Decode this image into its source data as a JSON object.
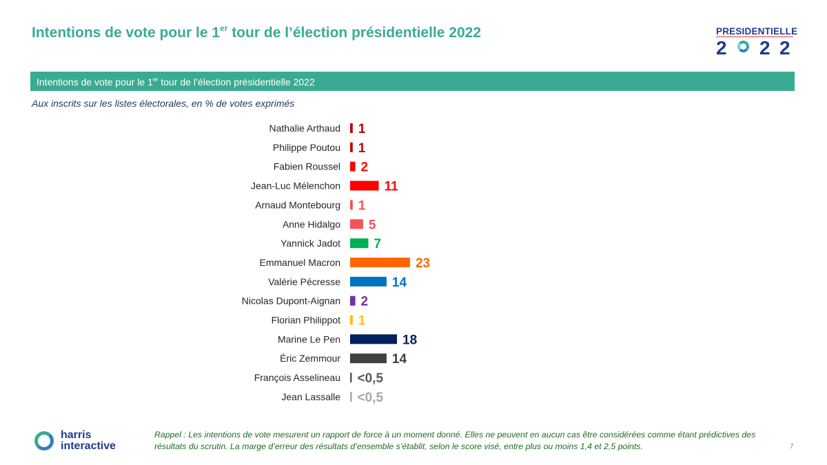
{
  "header": {
    "title_pre": "Intentions de vote pour le 1",
    "title_sup": "er",
    "title_post": " tour de l’élection présidentielle 2022"
  },
  "logo": {
    "word": "PRESIDENTIELLE",
    "digits": [
      "2",
      "2",
      "2"
    ]
  },
  "banner": {
    "text_pre": "Intentions  de vote pour le 1",
    "text_sup": "er",
    "text_post": " tour de l’élection présidentielle 2022"
  },
  "subtitle": "Aux inscrits sur les listes électorales, en % de votes exprimés",
  "chart_data": {
    "type": "bar",
    "orientation": "horizontal",
    "categories": [
      "Nathalie Arthaud",
      "Philippe Poutou",
      "Fabien Roussel",
      "Jean-Luc Mélenchon",
      "Arnaud Montebourg",
      "Anne Hidalgo",
      "Yannick Jadot",
      "Emmanuel Macron",
      "Valérie Pécresse",
      "Nicolas Dupont-Aignan",
      "Florian Philippot",
      "Marine Le Pen",
      "Éric Zemmour",
      "François Asselineau",
      "Jean Lassalle"
    ],
    "values": [
      1,
      1,
      2,
      11,
      1,
      5,
      7,
      23,
      14,
      2,
      1,
      18,
      14,
      0.25,
      0.25
    ],
    "labels": [
      "1",
      "1",
      "2",
      "11",
      "1",
      "5",
      "7",
      "23",
      "14",
      "2",
      "1",
      "18",
      "14",
      "<0,5",
      "<0,5"
    ],
    "colors": [
      "#c00000",
      "#c00000",
      "#ff0000",
      "#ff0000",
      "#ff5050",
      "#f4525a",
      "#00b050",
      "#ff6600",
      "#0070c0",
      "#7030a0",
      "#ffc000",
      "#002060",
      "#404040",
      "#595959",
      "#a6a6a6"
    ],
    "grid": false,
    "legend": "none"
  },
  "footer": {
    "rappel": "Rappel : Les intentions de vote mesurent un rapport de force à un moment donné. Elles ne peuvent en aucun cas être considérées comme étant prédictives des résultats du scrutin. La marge d’erreur des résultats d’ensemble s’établit, selon le score visé, entre plus ou moins 1,4 et 2,5 points.",
    "page_number": "7",
    "brand_line1": "harris",
    "brand_line2": "interactive"
  }
}
